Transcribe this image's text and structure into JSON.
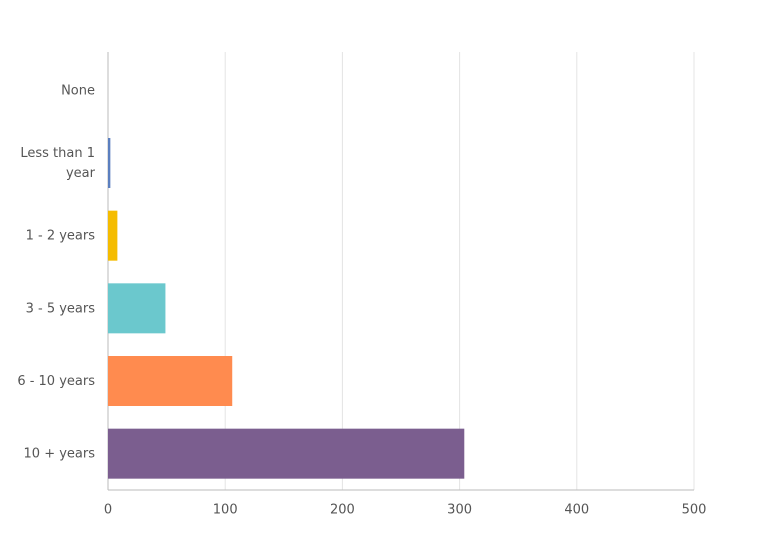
{
  "chart_data": {
    "type": "bar",
    "orientation": "horizontal",
    "categories": [
      "None",
      "Less than 1 year",
      "1 - 2 years",
      "3 - 5 years",
      "6 - 10 years",
      "10 + years"
    ],
    "values": [
      0,
      2,
      8,
      49,
      106,
      304
    ],
    "colors": [
      "#f05b6f",
      "#5b7fbf",
      "#f5bc00",
      "#6bc8cd",
      "#ff8b4f",
      "#7b5e8f"
    ],
    "xlim": [
      0,
      500
    ],
    "xticks": [
      0,
      100,
      200,
      300,
      400,
      500
    ],
    "grid": true
  }
}
